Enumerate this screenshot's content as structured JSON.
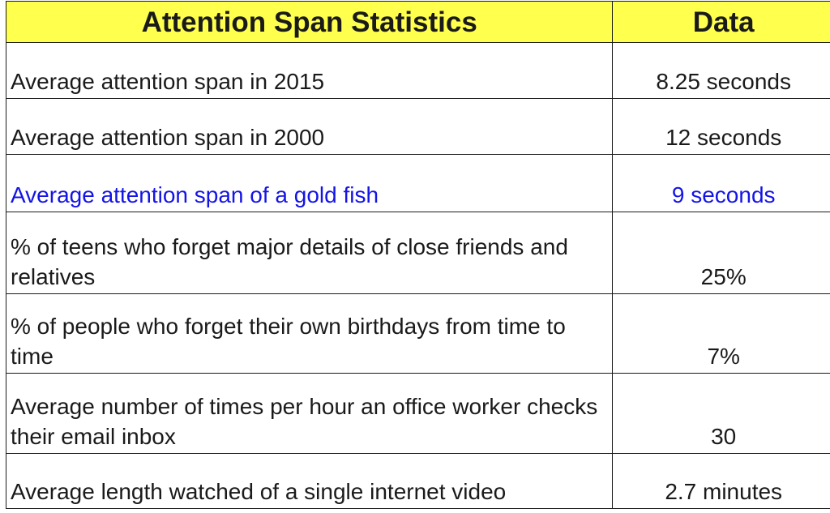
{
  "table": {
    "headers": [
      "Attention Span Statistics",
      "Data"
    ],
    "rows": [
      {
        "label": "Average attention span in 2015",
        "value": "8.25 seconds",
        "highlight": false
      },
      {
        "label": "Average attention span in 2000",
        "value": "12 seconds",
        "highlight": false
      },
      {
        "label": "Average attention span of a gold fish",
        "value": "9 seconds",
        "highlight": true
      },
      {
        "label": "% of teens who forget major details of close friends and relatives",
        "value": "25%",
        "highlight": false
      },
      {
        "label": "% of people who forget their own birthdays from time to time",
        "value": "7%",
        "highlight": false
      },
      {
        "label": "Average number of times per hour an office worker checks their email inbox",
        "value": "30",
        "highlight": false
      },
      {
        "label": "Average length watched of a single internet video",
        "value": "2.7 minutes",
        "highlight": false
      }
    ]
  },
  "colors": {
    "header_background": "#ffff4d",
    "highlight_text": "#1414e6",
    "text": "#1a1a1a",
    "border": "#1a1a1a"
  }
}
